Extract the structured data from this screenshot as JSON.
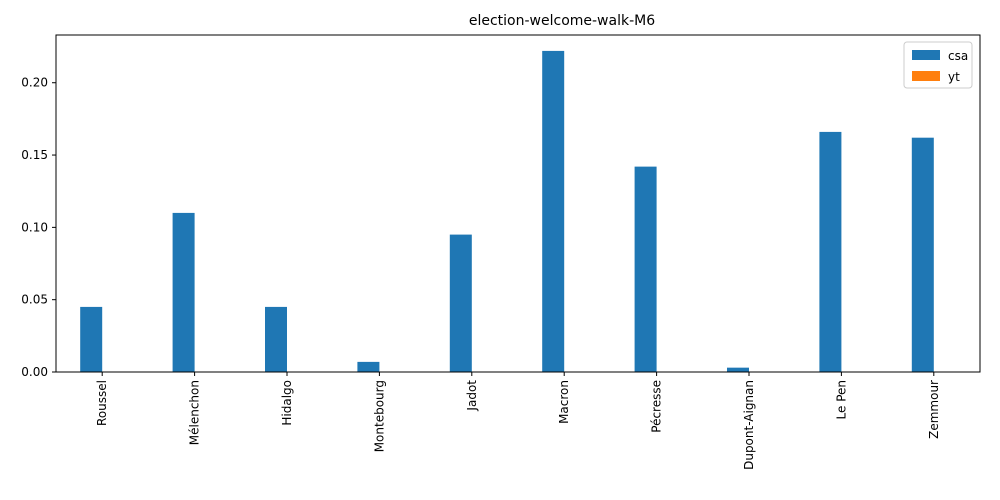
{
  "chart_data": {
    "type": "bar",
    "title": "election-welcome-walk-M6",
    "xlabel": "",
    "ylabel": "",
    "categories": [
      "Roussel",
      "Mélenchon",
      "Hidalgo",
      "Montebourg",
      "Jadot",
      "Macron",
      "Pécresse",
      "Dupont-Aignan",
      "Le Pen",
      "Zemmour"
    ],
    "series": [
      {
        "name": "csa",
        "color": "#1f77b4",
        "values": [
          0.045,
          0.11,
          0.045,
          0.007,
          0.095,
          0.222,
          0.142,
          0.003,
          0.166,
          0.162
        ]
      },
      {
        "name": "yt",
        "color": "#ff7f0e",
        "values": [
          0,
          0,
          0,
          0,
          0,
          0,
          0,
          0,
          0,
          0
        ]
      }
    ],
    "ylim": [
      0,
      0.233
    ],
    "yticks": [
      0.0,
      0.05,
      0.1,
      0.15,
      0.2
    ],
    "ytick_labels": [
      "0.00",
      "0.05",
      "0.10",
      "0.15",
      "0.20"
    ],
    "grid": false,
    "legend_position": "top-right"
  }
}
